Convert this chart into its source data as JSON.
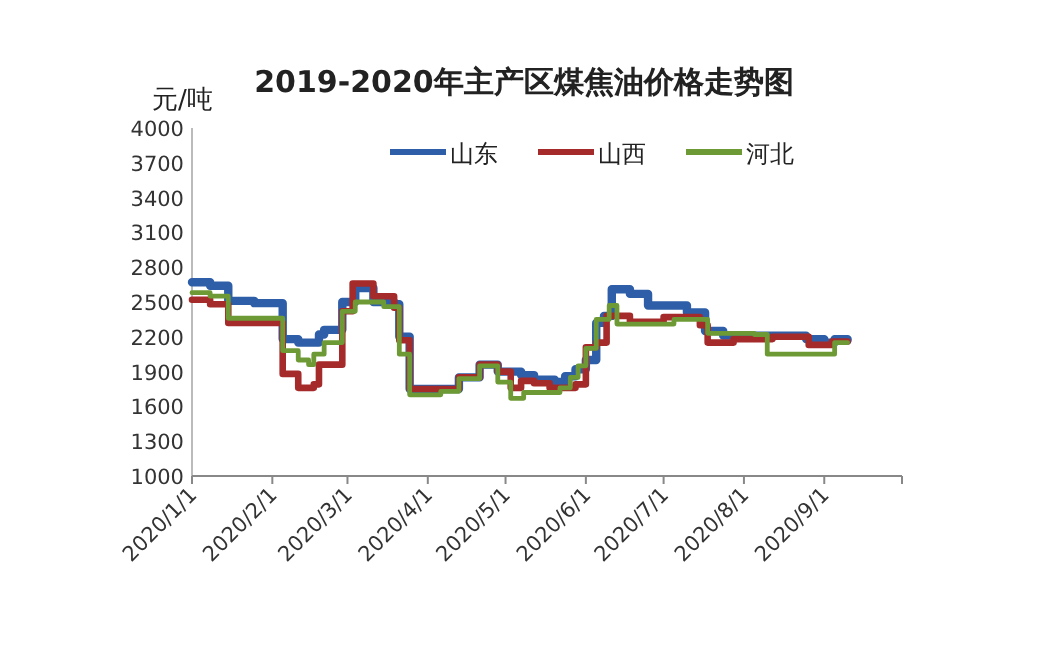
{
  "chart_data": {
    "type": "step",
    "title": "2019-2020年主产区煤焦油价格走势图",
    "ylabel": "元/吨",
    "legend": "top",
    "xlim": [
      "2020-01-01",
      "2020-10-01"
    ],
    "xticks": [
      {
        "value": "2020-01-01",
        "label": "2020/1/1"
      },
      {
        "value": "2020-02-01",
        "label": "2020/2/1"
      },
      {
        "value": "2020-03-01",
        "label": "2020/3/1"
      },
      {
        "value": "2020-04-01",
        "label": "2020/4/1"
      },
      {
        "value": "2020-05-01",
        "label": "2020/5/1"
      },
      {
        "value": "2020-06-01",
        "label": "2020/6/1"
      },
      {
        "value": "2020-07-01",
        "label": "2020/7/1"
      },
      {
        "value": "2020-08-01",
        "label": "2020/8/1"
      },
      {
        "value": "2020-09-01",
        "label": "2020/9/1"
      },
      {
        "value": "2020-10-01",
        "label": null
      }
    ],
    "ylim": [
      1000,
      4000
    ],
    "yticks": [
      1000,
      1300,
      1600,
      1900,
      2200,
      2500,
      2800,
      3100,
      3400,
      3700,
      4000
    ],
    "series": [
      {
        "name": "山东",
        "color": "#2e5ea8",
        "x": [
          "2020-01-01",
          "2020-01-08",
          "2020-01-15",
          "2020-01-25",
          "2020-02-05",
          "2020-02-11",
          "2020-02-19",
          "2020-02-21",
          "2020-02-28",
          "2020-03-04",
          "2020-03-11",
          "2020-03-19",
          "2020-03-21",
          "2020-03-25",
          "2020-04-13",
          "2020-04-21",
          "2020-04-28",
          "2020-05-07",
          "2020-05-12",
          "2020-05-20",
          "2020-05-24",
          "2020-05-28",
          "2020-06-01",
          "2020-06-05",
          "2020-06-08",
          "2020-06-11",
          "2020-06-18",
          "2020-06-25",
          "2020-07-10",
          "2020-07-17",
          "2020-07-24",
          "2020-08-25",
          "2020-09-01",
          "2020-09-05",
          "2020-09-10"
        ],
        "values": [
          2670,
          2640,
          2510,
          2490,
          2180,
          2150,
          2220,
          2260,
          2500,
          2620,
          2500,
          2480,
          2200,
          1750,
          1850,
          1960,
          1900,
          1870,
          1830,
          1810,
          1860,
          1920,
          2000,
          2320,
          2380,
          2610,
          2570,
          2470,
          2410,
          2250,
          2210,
          2180,
          2150,
          2180,
          2170
        ]
      },
      {
        "name": "山西",
        "color": "#a52a2a",
        "x": [
          "2020-01-01",
          "2020-01-08",
          "2020-01-15",
          "2020-02-05",
          "2020-02-11",
          "2020-02-17",
          "2020-02-19",
          "2020-02-28",
          "2020-03-03",
          "2020-03-11",
          "2020-03-19",
          "2020-03-21",
          "2020-03-25",
          "2020-04-13",
          "2020-04-21",
          "2020-04-28",
          "2020-05-03",
          "2020-05-07",
          "2020-05-12",
          "2020-05-18",
          "2020-05-28",
          "2020-06-01",
          "2020-06-05",
          "2020-06-09",
          "2020-06-18",
          "2020-07-01",
          "2020-07-15",
          "2020-07-18",
          "2020-07-28",
          "2020-08-12",
          "2020-08-26",
          "2020-09-04",
          "2020-09-10"
        ],
        "values": [
          2520,
          2480,
          2320,
          1880,
          1760,
          1790,
          1960,
          2420,
          2660,
          2550,
          2450,
          2170,
          1750,
          1850,
          1960,
          1900,
          1760,
          1820,
          1800,
          1760,
          1790,
          2110,
          2150,
          2380,
          2330,
          2370,
          2300,
          2150,
          2180,
          2200,
          2130,
          2160,
          2160
        ]
      },
      {
        "name": "河北",
        "color": "#6e9a35",
        "x": [
          "2020-01-01",
          "2020-01-08",
          "2020-01-15",
          "2020-02-05",
          "2020-02-11",
          "2020-02-15",
          "2020-02-17",
          "2020-02-21",
          "2020-02-28",
          "2020-03-04",
          "2020-03-15",
          "2020-03-21",
          "2020-03-25",
          "2020-04-06",
          "2020-04-13",
          "2020-04-21",
          "2020-04-28",
          "2020-05-03",
          "2020-05-08",
          "2020-05-22",
          "2020-05-26",
          "2020-05-29",
          "2020-06-01",
          "2020-06-05",
          "2020-06-10",
          "2020-06-13",
          "2020-07-05",
          "2020-07-18",
          "2020-08-05",
          "2020-08-10",
          "2020-09-05",
          "2020-09-10"
        ],
        "values": [
          2580,
          2550,
          2360,
          2080,
          2000,
          1960,
          2050,
          2150,
          2420,
          2500,
          2460,
          2050,
          1700,
          1730,
          1840,
          1950,
          1810,
          1670,
          1720,
          1760,
          1850,
          1950,
          2100,
          2350,
          2470,
          2310,
          2350,
          2230,
          2220,
          2050,
          2150,
          2150
        ]
      }
    ]
  }
}
